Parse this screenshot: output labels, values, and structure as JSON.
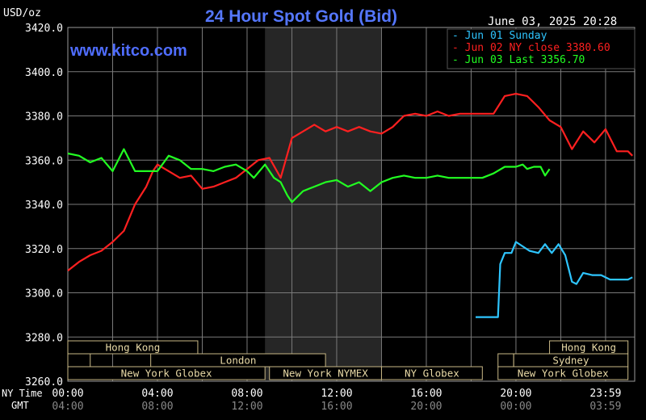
{
  "header": {
    "title": "24 Hour Spot Gold (Bid)",
    "unit": "USD/oz",
    "datetime": "June 03, 2025 20:28",
    "site": "www.kitco.com"
  },
  "legend": [
    {
      "label": "Jun 01 Sunday",
      "color": "#2ec5ff"
    },
    {
      "label": "Jun 02 NY close 3380.60",
      "color": "#ff2020"
    },
    {
      "label": "Jun 03 Last 3356.70",
      "color": "#22ff22"
    }
  ],
  "axis": {
    "ny_label": "NY Time",
    "gmt_label": "GMT",
    "ny_ticks": [
      "00:00",
      "04:00",
      "08:00",
      "12:00",
      "16:00",
      "20:00",
      "23:59"
    ],
    "gmt_ticks": [
      "04:00",
      "08:00",
      "12:00",
      "16:00",
      "20:00",
      "00:00",
      "03:59"
    ]
  },
  "markets": {
    "row1": [
      {
        "label": "Hong Kong",
        "start": 0,
        "end": 5.8
      },
      {
        "label": "Hong Kong",
        "start": 21.5,
        "end": 25
      }
    ],
    "row2": [
      {
        "label": "",
        "start": 0,
        "end": 1.0
      },
      {
        "label": "London",
        "start": 3.7,
        "end": 11.5
      },
      {
        "label": "",
        "start": 19.2,
        "end": 19.9
      },
      {
        "label": "Sydney",
        "start": 19.9,
        "end": 25
      }
    ],
    "row3": [
      {
        "label": "New York Globex",
        "start": 0,
        "end": 8.8
      },
      {
        "label": "New York NYMEX",
        "start": 9.0,
        "end": 14.0
      },
      {
        "label": "NY Globex",
        "start": 14.0,
        "end": 18.5
      },
      {
        "label": "New York Globex",
        "start": 19.2,
        "end": 25
      }
    ]
  },
  "chart_data": {
    "type": "line",
    "x_unit": "hours (NY time)",
    "xlim": [
      0,
      25.3
    ],
    "ylim": [
      3260,
      3420
    ],
    "y_ticks": [
      3260,
      3280,
      3300,
      3320,
      3340,
      3360,
      3380,
      3400,
      3420
    ],
    "shaded_region": [
      8.8,
      14.0
    ],
    "series": [
      {
        "name": "Jun 01 Sunday",
        "color": "#2ec5ff",
        "x": [
          18.2,
          19.2,
          19.3,
          19.5,
          19.8,
          20.0,
          20.3,
          20.6,
          21.0,
          21.3,
          21.6,
          21.9,
          22.2,
          22.5,
          22.7,
          23.0,
          23.4,
          23.8,
          24.2,
          24.6,
          25.0,
          25.2
        ],
        "y": [
          3289,
          3289,
          3313,
          3318,
          3318,
          3323,
          3321,
          3319,
          3318,
          3322,
          3318,
          3322,
          3317,
          3305,
          3304,
          3309,
          3308,
          3308,
          3306,
          3306,
          3306,
          3307
        ]
      },
      {
        "name": "Jun 02 NY close 3380.60",
        "color": "#ff2020",
        "x": [
          0,
          0.5,
          1,
          1.5,
          2,
          2.5,
          3,
          3.5,
          3.8,
          4,
          4.5,
          5,
          5.5,
          6,
          6.5,
          7,
          7.5,
          8,
          8.5,
          9,
          9.5,
          10,
          10.5,
          11,
          11.5,
          12,
          12.5,
          13,
          13.5,
          14,
          14.5,
          15,
          15.5,
          16,
          16.5,
          17,
          17.5,
          18,
          18.5,
          19,
          19.5,
          20,
          20.5,
          21,
          21.5,
          22,
          22.5,
          23,
          23.5,
          24,
          24.5,
          25,
          25.2
        ],
        "y": [
          3310,
          3314,
          3317,
          3319,
          3323,
          3328,
          3340,
          3348,
          3355,
          3358,
          3355,
          3352,
          3353,
          3347,
          3348,
          3350,
          3352,
          3356,
          3360,
          3361,
          3352,
          3370,
          3373,
          3376,
          3373,
          3375,
          3373,
          3375,
          3373,
          3372,
          3375,
          3380,
          3381,
          3380,
          3382,
          3380,
          3381,
          3381,
          3381,
          3381,
          3389,
          3390,
          3389,
          3384,
          3378,
          3375,
          3365,
          3373,
          3368,
          3374,
          3364,
          3364,
          3362
        ]
      },
      {
        "name": "Jun 03 Last 3356.70",
        "color": "#22ff22",
        "x": [
          0,
          0.5,
          1,
          1.5,
          2,
          2.5,
          3,
          3.5,
          4,
          4.5,
          5,
          5.5,
          6,
          6.5,
          7,
          7.5,
          8,
          8.3,
          8.8,
          9.2,
          9.5,
          9.8,
          10,
          10.5,
          11,
          11.5,
          12,
          12.5,
          13,
          13.5,
          14,
          14.5,
          15,
          15.5,
          16,
          16.5,
          17,
          17.5,
          18,
          18.5,
          19,
          19.5,
          20,
          20.3,
          20.5,
          20.8,
          21.1,
          21.3,
          21.5
        ],
        "y": [
          3363,
          3362,
          3359,
          3361,
          3355,
          3365,
          3355,
          3355,
          3355,
          3362,
          3360,
          3356,
          3356,
          3355,
          3357,
          3358,
          3355,
          3352,
          3358,
          3352,
          3350,
          3344,
          3341,
          3346,
          3348,
          3350,
          3351,
          3348,
          3350,
          3346,
          3350,
          3352,
          3353,
          3352,
          3352,
          3353,
          3352,
          3352,
          3352,
          3352,
          3354,
          3357,
          3357,
          3358,
          3356,
          3357,
          3357,
          3353,
          3356
        ]
      }
    ]
  }
}
